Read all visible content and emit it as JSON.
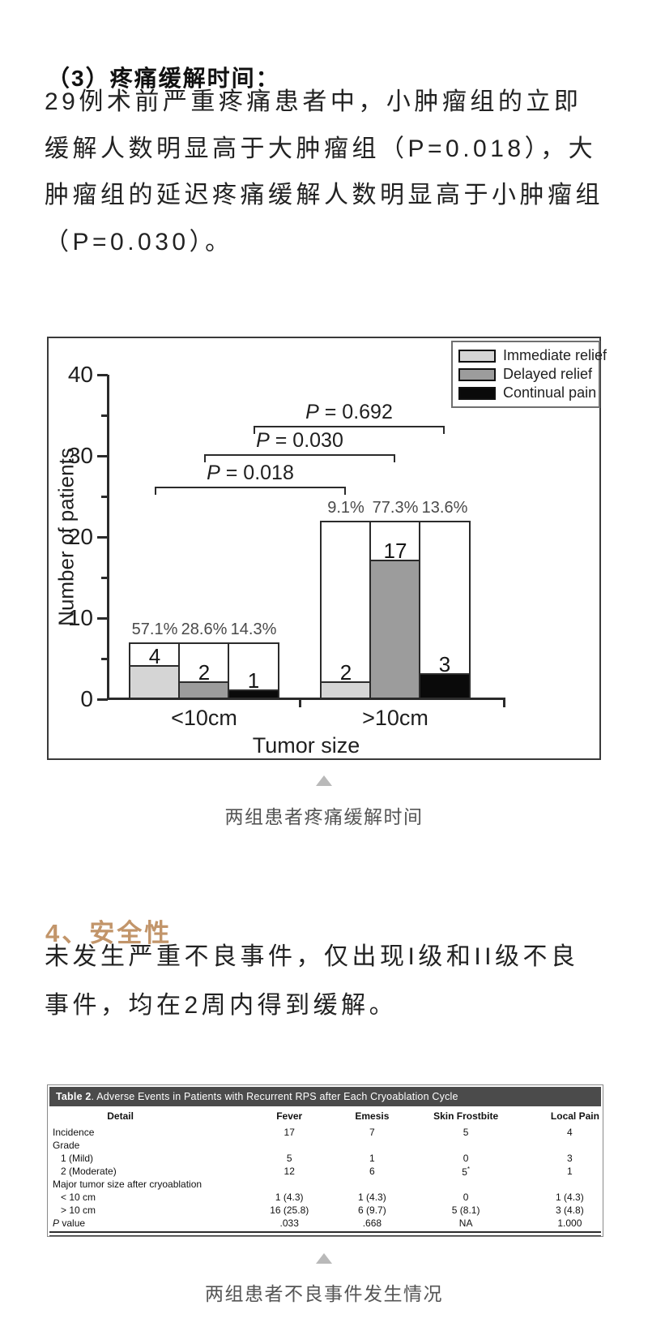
{
  "article": {
    "heading1": "（3）疼痛缓解时间：",
    "paragraph1_lines": [
      "29例术前严重疼痛患者中，小肿瘤组的立即",
      "缓解人数明显高于大肿瘤组（P=0.018），大",
      "肿瘤组的延迟疼痛缓解人数明显高于小肿瘤组",
      "（P=0.030）。"
    ],
    "heading2": "4、安全性",
    "accent_color": "#c2956a",
    "paragraph2_lines": [
      "未发生严重不良事件，仅出现I级和II级不良",
      "事件，均在2周内得到缓解。"
    ]
  },
  "figures": {
    "chart_caption": "两组患者疼痛缓解时间",
    "table_caption": "两组患者不良事件发生情况",
    "marker_icon": "triangle-up-icon",
    "marker_color": "#b9b9b9"
  },
  "chart_data": {
    "type": "bar",
    "title": "",
    "xlabel": "Tumor size",
    "ylabel": "Number of patients",
    "ylim": [
      0,
      40
    ],
    "yticks": [
      0,
      10,
      20,
      30,
      40
    ],
    "categories": [
      "<10cm",
      ">10cm"
    ],
    "group_totals": [
      7,
      22
    ],
    "series": [
      {
        "name": "Immediate relief",
        "color": "#d5d5d5",
        "values": [
          4,
          2
        ],
        "percents": [
          "57.1%",
          "9.1%"
        ]
      },
      {
        "name": "Delayed relief",
        "color": "#9c9c9c",
        "values": [
          2,
          17
        ],
        "percents": [
          "28.6%",
          "77.3%"
        ]
      },
      {
        "name": "Continual pain",
        "color": "#0a0a0a",
        "values": [
          1,
          3
        ],
        "percents": [
          "14.3%",
          "13.6%"
        ]
      }
    ],
    "significance_brackets": [
      {
        "label": "P = 0.018",
        "series": "Immediate relief"
      },
      {
        "label": "P = 0.030",
        "series": "Delayed relief"
      },
      {
        "label": "P = 0.692",
        "series": "Continual pain"
      }
    ],
    "legend_position": "top-right",
    "grid": false
  },
  "table": {
    "title_bold": "Table 2",
    "title_rest": ". Adverse Events in Patients with Recurrent RPS after Each Cryoablation Cycle",
    "columns": [
      "Detail",
      "Fever",
      "Emesis",
      "Skin Frostbite",
      "Local Pain"
    ],
    "header_bg": "#4b4b4b",
    "rows": [
      {
        "label": "Incidence",
        "indent": false,
        "values": [
          "17",
          "7",
          "5",
          "4"
        ]
      },
      {
        "label": "Grade",
        "indent": false,
        "values": [
          "",
          "",
          "",
          ""
        ]
      },
      {
        "label": "1 (Mild)",
        "indent": true,
        "values": [
          "5",
          "1",
          "0",
          "3"
        ]
      },
      {
        "label": "2 (Moderate)",
        "indent": true,
        "values": [
          "12",
          "6",
          "5*",
          "1"
        ]
      },
      {
        "label": "Major tumor size after cryoablation",
        "indent": false,
        "values": [
          "",
          "",
          "",
          ""
        ]
      },
      {
        "label": "< 10 cm",
        "indent": true,
        "values": [
          "1 (4.3)",
          "1 (4.3)",
          "0",
          "1 (4.3)"
        ]
      },
      {
        "label": "> 10 cm",
        "indent": true,
        "values": [
          "16 (25.8)",
          "6 (9.7)",
          "5 (8.1)",
          "3 (4.8)"
        ]
      },
      {
        "label": "P value",
        "indent": false,
        "p_italic": true,
        "values": [
          ".033",
          ".668",
          "NA",
          "1.000"
        ]
      }
    ]
  }
}
